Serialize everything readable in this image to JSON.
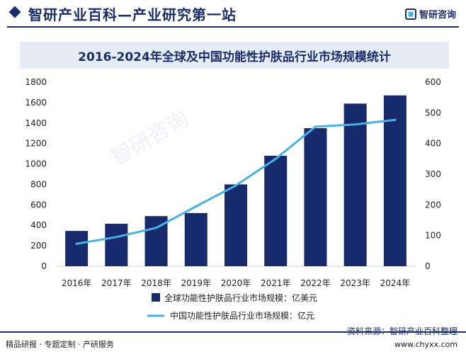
{
  "header": {
    "site_title": "智研产业百科—产业研究第一站",
    "logo_text": "智研咨询"
  },
  "watermark_text": "智研咨询",
  "chart_data": {
    "type": "bar",
    "title": "2016-2024年全球及中国功能性护肤品行业市场规模统计",
    "categories": [
      "2016年",
      "2017年",
      "2018年",
      "2019年",
      "2020年",
      "2021年",
      "2022年",
      "2023年",
      "2024年"
    ],
    "series": [
      {
        "name": "全球功能性护肤品行业市场规模：亿美元",
        "type": "bar",
        "axis": "left",
        "color": "#172a6b",
        "values": [
          345,
          415,
          490,
          520,
          800,
          1080,
          1350,
          1590,
          1670
        ]
      },
      {
        "name": "中国功能性护肤品行业市场规模：亿元",
        "type": "line",
        "axis": "right",
        "color": "#4ab0e6",
        "values": [
          73,
          95,
          125,
          195,
          263,
          350,
          455,
          462,
          477
        ]
      }
    ],
    "y_left": {
      "min": 0,
      "max": 1800,
      "ticks": [
        0,
        200,
        400,
        600,
        800,
        1000,
        1200,
        1400,
        1600,
        1800
      ]
    },
    "y_right": {
      "min": 0,
      "max": 600,
      "ticks": [
        0,
        100,
        200,
        300,
        400,
        500,
        600
      ]
    },
    "legend_position": "bottom-center",
    "grid": false
  },
  "footer": {
    "left_text": "精品研报 · 专题定制 · 产研服务",
    "source": "资料来源：智研产业百科整理",
    "website": "www.chyxx.com"
  }
}
